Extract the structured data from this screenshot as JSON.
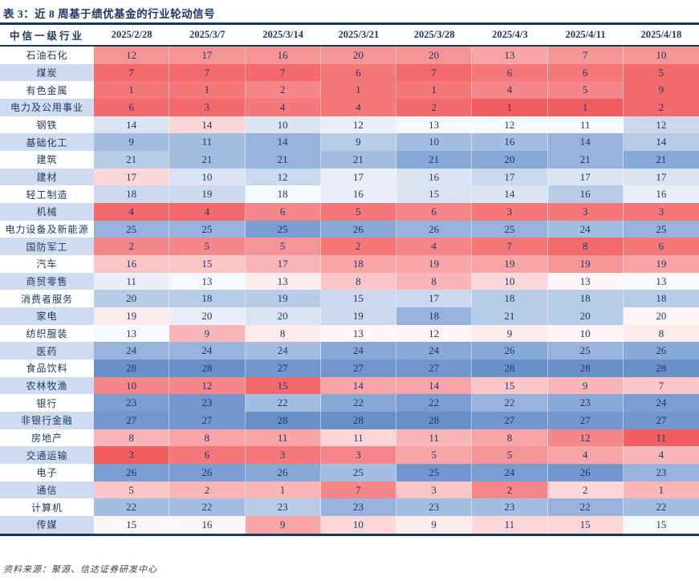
{
  "title": "表 3：近 8 周基于绩优基金的行业轮动信号",
  "source_note": "资料来源：聚源、信达证券研发中心",
  "text_color": "#1f3864",
  "rule_color": "#17365d",
  "name_column_alt_bg": "#cfdbef",
  "chart_data": {
    "type": "heatmap",
    "title": "表 3：近 8 周基于绩优基金的行业轮动信号",
    "row_header": "中信一级行业",
    "columns": [
      "2025/2/28",
      "2025/3/7",
      "2025/3/14",
      "2025/3/21",
      "2025/3/28",
      "2025/4/3",
      "2025/4/11",
      "2025/4/18"
    ],
    "value_range": [
      1,
      28
    ],
    "legend": "red = bullish rotation signal, blue = bearish; cell numbers are industry ranks",
    "palette": {
      "r1": "#f25d61",
      "r2": "#f3696c",
      "r3": "#f4777a",
      "r4": "#f58689",
      "r5": "#f69598",
      "r6": "#f8a5a8",
      "r7": "#f9b6b9",
      "r8": "#fbc6c9",
      "r9": "#fcd7da",
      "r10": "#fdeaec",
      "r11": "#fef5f6",
      "b1": "#6a90ca",
      "b2": "#7296cd",
      "b3": "#7b9dd1",
      "b4": "#88a8d5",
      "b5": "#97b3db",
      "b6": "#a6bde2",
      "b7": "#b8cbe7",
      "b8": "#cbd8ee",
      "b9": "#dbe4f3",
      "b10": "#e9eef8",
      "b11": "#f5f8fc"
    },
    "rows": [
      {
        "industry": "石油石化",
        "values": [
          12,
          17,
          16,
          20,
          20,
          13,
          7,
          10
        ],
        "shades": [
          "r5",
          "r5",
          "r5",
          "r5",
          "r5",
          "r6",
          "r5",
          "r5"
        ]
      },
      {
        "industry": "煤炭",
        "values": [
          7,
          7,
          7,
          6,
          7,
          6,
          6,
          5
        ],
        "shades": [
          "r2",
          "r2",
          "r2",
          "r3",
          "r2",
          "r3",
          "r3",
          "r2"
        ]
      },
      {
        "industry": "有色金属",
        "values": [
          1,
          1,
          2,
          1,
          1,
          4,
          5,
          9
        ],
        "shades": [
          "r3",
          "r3",
          "r4",
          "r3",
          "r3",
          "r4",
          "r4",
          "r2"
        ]
      },
      {
        "industry": "电力及公用事业",
        "values": [
          6,
          3,
          4,
          4,
          2,
          1,
          1,
          2
        ],
        "shades": [
          "r2",
          "r2",
          "r3",
          "r3",
          "r2",
          "r1",
          "r1",
          "r2"
        ]
      },
      {
        "industry": "钢铁",
        "values": [
          14,
          14,
          10,
          12,
          13,
          12,
          11,
          12
        ],
        "shades": [
          "b9",
          "r9",
          "b9",
          "b10",
          "b11",
          "b11",
          "b11",
          "b8"
        ]
      },
      {
        "industry": "基础化工",
        "values": [
          9,
          11,
          14,
          9,
          10,
          16,
          14,
          14
        ],
        "shades": [
          "b6",
          "b6",
          "b5",
          "b7",
          "b6",
          "b6",
          "b5",
          "b7"
        ]
      },
      {
        "industry": "建筑",
        "values": [
          21,
          21,
          21,
          21,
          21,
          20,
          21,
          21
        ],
        "shades": [
          "b7",
          "b6",
          "b5",
          "b6",
          "b4",
          "b4",
          "b5",
          "b4"
        ]
      },
      {
        "industry": "建材",
        "values": [
          17,
          10,
          12,
          17,
          16,
          17,
          17,
          17
        ],
        "shades": [
          "r9",
          "b9",
          "b8",
          "b10",
          "b9",
          "b8",
          "b9",
          "b9"
        ]
      },
      {
        "industry": "轻工制造",
        "values": [
          18,
          19,
          18,
          16,
          15,
          14,
          16,
          16
        ],
        "shades": [
          "b8",
          "b8",
          "b11",
          "b10",
          "b9",
          "b9",
          "b7",
          "b10"
        ]
      },
      {
        "industry": "机械",
        "values": [
          4,
          4,
          6,
          5,
          6,
          3,
          3,
          3
        ],
        "shades": [
          "r2",
          "r2",
          "r4",
          "r3",
          "r4",
          "r3",
          "r3",
          "r3"
        ]
      },
      {
        "industry": "电力设备及新能源",
        "values": [
          25,
          25,
          25,
          26,
          26,
          25,
          24,
          25
        ],
        "shades": [
          "b5",
          "b5",
          "b3",
          "b4",
          "b5",
          "b5",
          "b6",
          "b5"
        ]
      },
      {
        "industry": "国防军工",
        "values": [
          2,
          5,
          5,
          2,
          4,
          7,
          8,
          6
        ],
        "shades": [
          "r4",
          "r4",
          "r5",
          "r3",
          "r4",
          "r3",
          "r2",
          "r3"
        ]
      },
      {
        "industry": "汽车",
        "values": [
          16,
          15,
          17,
          18,
          19,
          19,
          19,
          19
        ],
        "shades": [
          "r8",
          "r8",
          "r7",
          "r6",
          "r6",
          "r6",
          "r5",
          "r6"
        ]
      },
      {
        "industry": "商贸零售",
        "values": [
          11,
          13,
          13,
          8,
          8,
          10,
          13,
          13
        ],
        "shades": [
          "b10",
          "b11",
          "r10",
          "r8",
          "r7",
          "r9",
          "r11",
          "b11"
        ]
      },
      {
        "industry": "消费者服务",
        "values": [
          20,
          18,
          19,
          15,
          17,
          18,
          18,
          18
        ],
        "shades": [
          "b7",
          "b7",
          "b7",
          "b8",
          "b8",
          "b7",
          "b7",
          "b7"
        ]
      },
      {
        "industry": "家电",
        "values": [
          19,
          20,
          20,
          19,
          18,
          21,
          20,
          20
        ],
        "shades": [
          "r10",
          "b10",
          "b9",
          "b8",
          "b5",
          "b7",
          "b7",
          "r11"
        ]
      },
      {
        "industry": "纺织服装",
        "values": [
          13,
          9,
          8,
          13,
          12,
          9,
          10,
          8
        ],
        "shades": [
          "b11",
          "r7",
          "r10",
          "r11",
          "r11",
          "r10",
          "r11",
          "r10"
        ]
      },
      {
        "industry": "医药",
        "values": [
          24,
          24,
          24,
          24,
          24,
          26,
          25,
          26
        ],
        "shades": [
          "b5",
          "b5",
          "b6",
          "b4",
          "b4",
          "b4",
          "b5",
          "b4"
        ]
      },
      {
        "industry": "食品饮料",
        "values": [
          28,
          28,
          27,
          27,
          27,
          28,
          28,
          28
        ],
        "shades": [
          "b1",
          "b1",
          "b2",
          "b2",
          "b2",
          "b1",
          "b1",
          "b1"
        ]
      },
      {
        "industry": "农林牧渔",
        "values": [
          10,
          12,
          15,
          14,
          14,
          15,
          9,
          7
        ],
        "shades": [
          "r4",
          "r4",
          "r2",
          "r6",
          "r6",
          "r8",
          "r7",
          "r8"
        ]
      },
      {
        "industry": "银行",
        "values": [
          23,
          23,
          22,
          22,
          22,
          22,
          23,
          24
        ],
        "shades": [
          "b3",
          "b2",
          "b6",
          "b4",
          "b3",
          "b5",
          "b4",
          "b3"
        ]
      },
      {
        "industry": "非银行金融",
        "values": [
          27,
          27,
          28,
          28,
          28,
          27,
          27,
          27
        ],
        "shades": [
          "b2",
          "b2",
          "b1",
          "b1",
          "b1",
          "b2",
          "b2",
          "b2"
        ]
      },
      {
        "industry": "房地产",
        "values": [
          8,
          8,
          11,
          11,
          11,
          8,
          12,
          11
        ],
        "shades": [
          "r7",
          "r6",
          "r6",
          "r9",
          "r7",
          "r6",
          "r4",
          "r1"
        ]
      },
      {
        "industry": "交通运输",
        "values": [
          3,
          6,
          3,
          3,
          5,
          5,
          4,
          4
        ],
        "shades": [
          "r1",
          "r3",
          "r3",
          "r4",
          "r6",
          "r5",
          "r6",
          "r7"
        ]
      },
      {
        "industry": "电子",
        "values": [
          26,
          26,
          26,
          25,
          25,
          24,
          26,
          23
        ],
        "shades": [
          "b3",
          "b3",
          "b4",
          "b6",
          "b2",
          "b3",
          "b2",
          "b5"
        ]
      },
      {
        "industry": "通信",
        "values": [
          5,
          2,
          1,
          7,
          3,
          2,
          2,
          1
        ],
        "shades": [
          "r8",
          "r7",
          "r7",
          "r4",
          "r8",
          "r4",
          "r9",
          "r7"
        ]
      },
      {
        "industry": "计算机",
        "values": [
          22,
          22,
          23,
          23,
          23,
          23,
          22,
          22
        ],
        "shades": [
          "b6",
          "b6",
          "b7",
          "b5",
          "b6",
          "b6",
          "b5",
          "b6"
        ]
      },
      {
        "industry": "传媒",
        "values": [
          15,
          16,
          9,
          10,
          9,
          11,
          15,
          15
        ],
        "shades": [
          "r11",
          "r11",
          "r6",
          "r9",
          "r10",
          "r9",
          "r9",
          "b11"
        ]
      }
    ]
  }
}
